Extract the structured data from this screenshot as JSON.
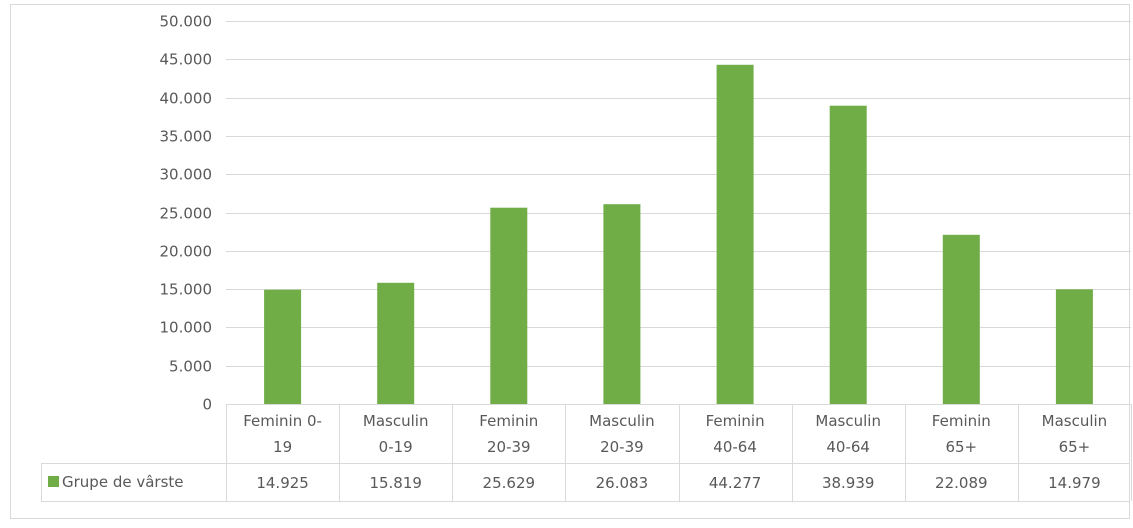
{
  "chart_data": {
    "type": "bar",
    "categories": [
      [
        "Feminin 0-",
        "19"
      ],
      [
        "Masculin",
        "0-19"
      ],
      [
        "Feminin",
        "20-39"
      ],
      [
        "Masculin",
        "20-39"
      ],
      [
        "Feminin",
        "40-64"
      ],
      [
        "Masculin",
        "40-64"
      ],
      [
        "Feminin",
        "65+"
      ],
      [
        "Masculin",
        "65+"
      ]
    ],
    "series": [
      {
        "name": "Grupe de vârste",
        "values": [
          14925,
          15819,
          25629,
          26083,
          44277,
          38939,
          22089,
          14979
        ],
        "value_labels": [
          "14.925",
          "15.819",
          "25.629",
          "26.083",
          "44.277",
          "38.939",
          "22.089",
          "14.979"
        ],
        "color": "#70ad47"
      }
    ],
    "yticks": [
      "0",
      "5.000",
      "10.000",
      "15.000",
      "20.000",
      "25.000",
      "30.000",
      "35.000",
      "40.000",
      "45.000",
      "50.000"
    ],
    "ylim": [
      0,
      50000
    ],
    "grid": true,
    "legend": "data-table",
    "colors": {
      "gridline": "#d9d9d9",
      "text": "#595959",
      "border": "#d9d9d9"
    }
  }
}
